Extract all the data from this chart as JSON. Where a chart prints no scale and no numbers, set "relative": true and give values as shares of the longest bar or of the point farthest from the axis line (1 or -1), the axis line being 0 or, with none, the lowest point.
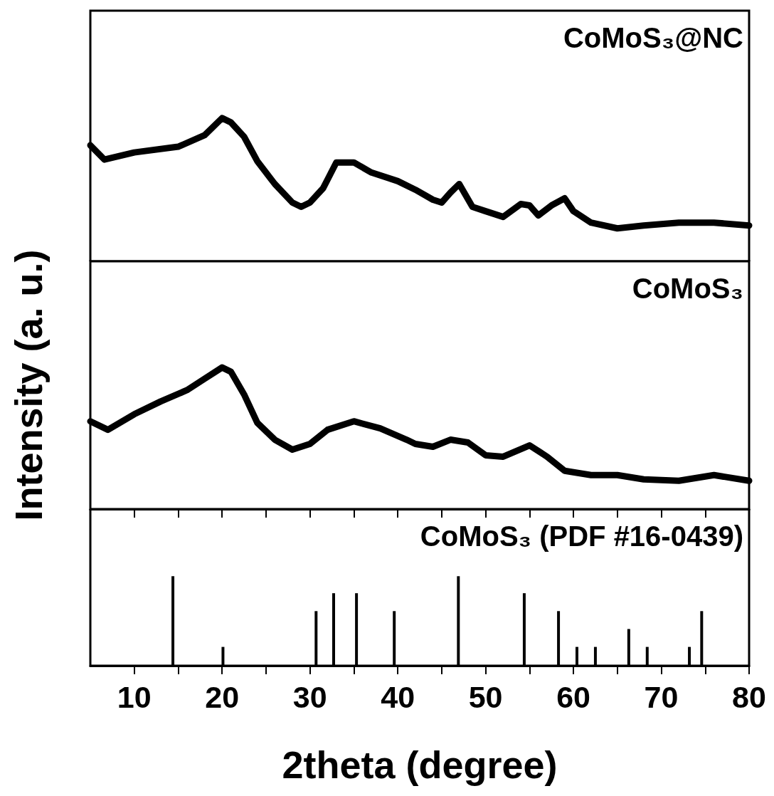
{
  "chart_data": [
    {
      "type": "line",
      "relative": true,
      "xlim": [
        5,
        80
      ],
      "tick_labels": false,
      "xticks": [
        10,
        {
          "value": 15,
          "label": null
        },
        20,
        {
          "value": 25,
          "label": null
        },
        30,
        {
          "value": 35,
          "label": null
        },
        40,
        {
          "value": 45,
          "label": null
        },
        50,
        {
          "value": 55,
          "label": null
        },
        60,
        {
          "value": 65,
          "label": null
        },
        70,
        {
          "value": 75,
          "label": null
        },
        80
      ],
      "series": [
        {
          "name": "CoMoS₃@NC",
          "color": "#000000",
          "x": [
            5,
            6.6,
            10,
            15,
            18,
            20,
            21,
            22.5,
            24,
            26,
            28,
            29,
            30,
            31.5,
            33,
            35,
            37,
            40,
            42,
            44,
            45,
            46,
            47,
            48.5,
            50,
            52,
            54,
            55,
            56,
            57.5,
            59,
            60,
            62,
            65,
            68,
            72,
            76,
            80
          ],
          "values": [
            0.81,
            0.71,
            0.76,
            0.8,
            0.88,
            1.0,
            0.97,
            0.87,
            0.7,
            0.54,
            0.41,
            0.38,
            0.41,
            0.51,
            0.69,
            0.69,
            0.62,
            0.56,
            0.5,
            0.43,
            0.41,
            0.48,
            0.54,
            0.38,
            0.35,
            0.31,
            0.4,
            0.39,
            0.32,
            0.39,
            0.44,
            0.35,
            0.27,
            0.23,
            0.25,
            0.27,
            0.27,
            0.25
          ]
        }
      ]
    },
    {
      "type": "line",
      "relative": true,
      "xlim": [
        5,
        80
      ],
      "tick_labels": false,
      "ylabel": "Intensity (a. u.)",
      "xticks": [
        10,
        {
          "value": 15,
          "label": null
        },
        20,
        {
          "value": 25,
          "label": null
        },
        30,
        {
          "value": 35,
          "label": null
        },
        40,
        {
          "value": 45,
          "label": null
        },
        50,
        {
          "value": 55,
          "label": null
        },
        60,
        {
          "value": 65,
          "label": null
        },
        70,
        {
          "value": 75,
          "label": null
        },
        80
      ],
      "series": [
        {
          "name": "CoMoS₃",
          "color": "#000000",
          "x": [
            5,
            7,
            10,
            13,
            16,
            18,
            20,
            21,
            22.5,
            24,
            26,
            28,
            30,
            32,
            35,
            38,
            41,
            42,
            44,
            46,
            48,
            50,
            52,
            55,
            57,
            59,
            62,
            65,
            68,
            72,
            76,
            80
          ],
          "values": [
            0.62,
            0.56,
            0.67,
            0.76,
            0.84,
            0.92,
            1.0,
            0.97,
            0.81,
            0.61,
            0.49,
            0.42,
            0.46,
            0.56,
            0.62,
            0.57,
            0.49,
            0.46,
            0.44,
            0.49,
            0.47,
            0.38,
            0.37,
            0.45,
            0.37,
            0.27,
            0.24,
            0.24,
            0.21,
            0.2,
            0.24,
            0.2
          ]
        }
      ]
    },
    {
      "type": "bar",
      "relative": true,
      "xlim": [
        5,
        80
      ],
      "tick_labels": "x",
      "xlabel": "2theta (degree)",
      "xticks": [
        10,
        {
          "value": 15,
          "label": null
        },
        20,
        {
          "value": 25,
          "label": null
        },
        30,
        {
          "value": 35,
          "label": null
        },
        40,
        {
          "value": 45,
          "label": null
        },
        50,
        {
          "value": 55,
          "label": null
        },
        60,
        {
          "value": 65,
          "label": null
        },
        70,
        {
          "value": 75,
          "label": null
        },
        80
      ],
      "series": [
        {
          "name": "CoMoS₃ (PDF #16-0439)",
          "color": "#000000",
          "x": [
            14.4,
            20.1,
            30.7,
            32.7,
            35.3,
            39.6,
            46.9,
            54.4,
            58.3,
            60.4,
            62.5,
            66.3,
            68.4,
            73.2,
            74.6
          ],
          "values": [
            1.0,
            0.21,
            0.61,
            0.81,
            0.81,
            0.61,
            1.0,
            0.81,
            0.61,
            0.21,
            0.21,
            0.41,
            0.21,
            0.21,
            0.61
          ]
        }
      ]
    }
  ]
}
